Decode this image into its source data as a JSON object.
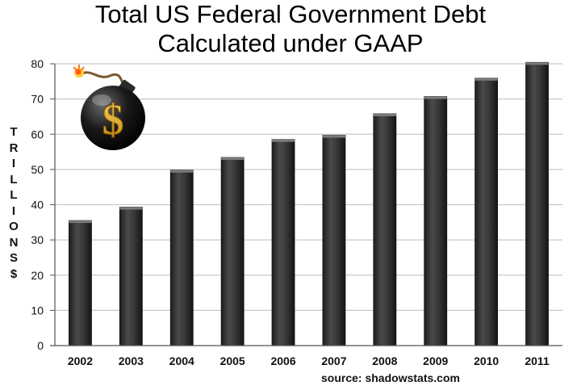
{
  "chart_data": {
    "type": "bar",
    "title_lines": [
      "Total US Federal Government Debt",
      "Calculated under GAAP"
    ],
    "ylabel_chars": [
      "T",
      "R",
      "I",
      "L",
      "L",
      "I",
      "O",
      "N",
      "S",
      "$"
    ],
    "categories": [
      "2002",
      "2003",
      "2004",
      "2005",
      "2006",
      "2007",
      "2008",
      "2009",
      "2010",
      "2011"
    ],
    "values": [
      35.5,
      39.3,
      49.8,
      53.4,
      58.5,
      59.7,
      65.8,
      70.7,
      75.9,
      80.4
    ],
    "ylim": [
      0,
      80
    ],
    "yticks": [
      0,
      10,
      20,
      30,
      40,
      50,
      60,
      70,
      80
    ],
    "grid": true,
    "source": "source: shadowstats.com",
    "colors": {
      "bar": "#3a3a3a",
      "bar_highlight": "#7a7a7a",
      "grid": "#c8c8c8"
    },
    "decoration": "dollar-bomb-icon"
  }
}
